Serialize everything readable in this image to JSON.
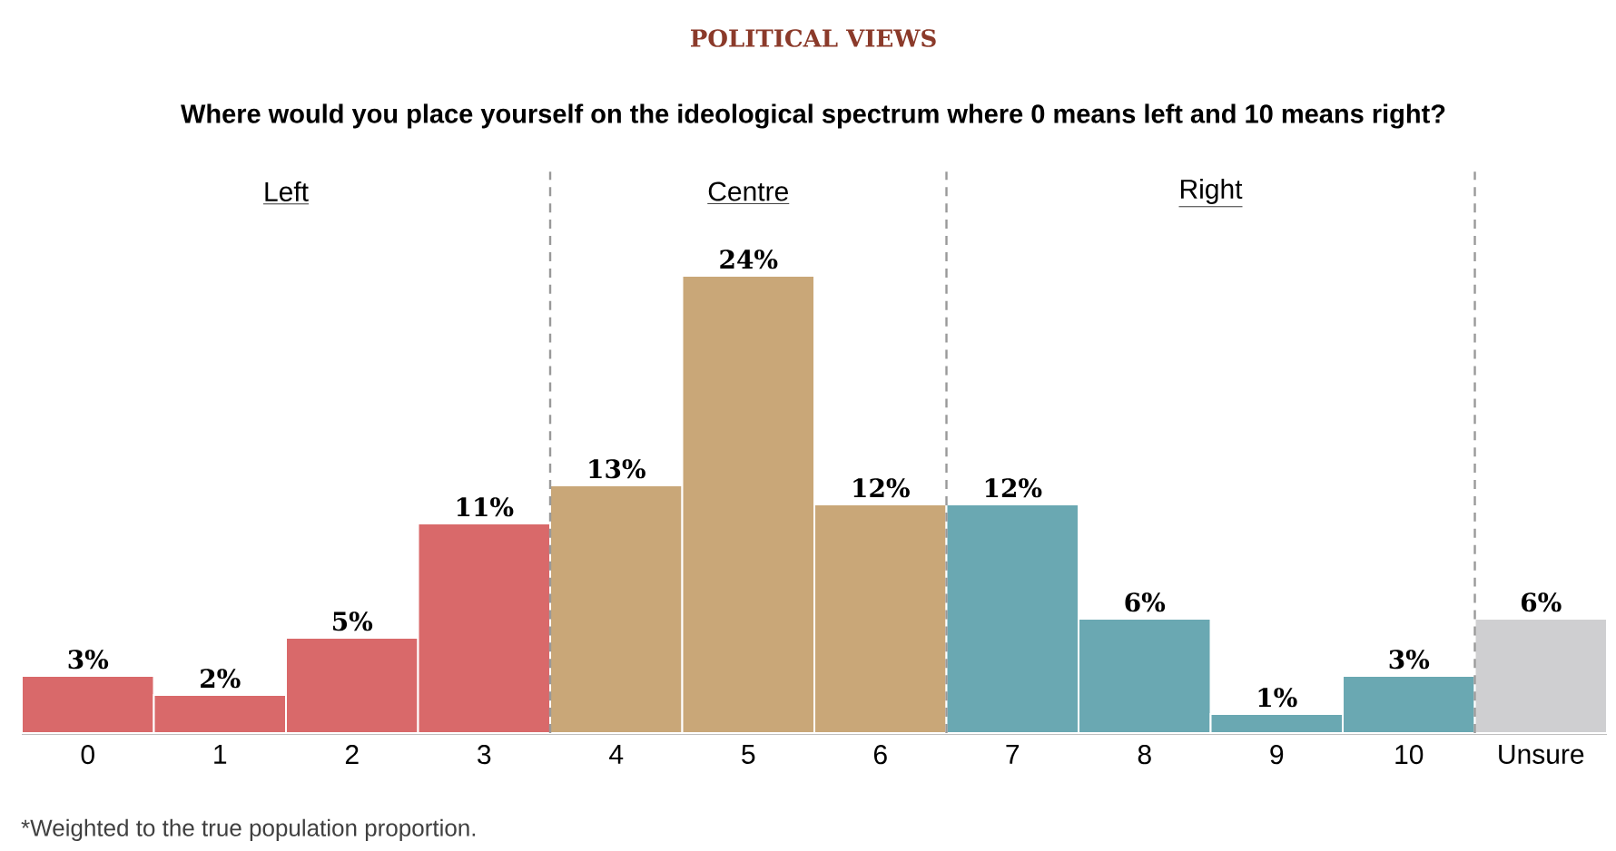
{
  "chart_data": {
    "type": "bar",
    "title": "POLITICAL VIEWS",
    "subtitle": "Where would you place yourself on the ideological spectrum where 0 means left and 10 means right?",
    "categories": [
      "0",
      "1",
      "2",
      "3",
      "4",
      "5",
      "6",
      "7",
      "8",
      "9",
      "10",
      "Unsure"
    ],
    "values": [
      3,
      2,
      5,
      11,
      13,
      24,
      12,
      12,
      6,
      1,
      3,
      6
    ],
    "value_labels": [
      "3%",
      "2%",
      "5%",
      "11%",
      "13%",
      "24%",
      "12%",
      "12%",
      "6%",
      "1%",
      "3%",
      "6%"
    ],
    "colors": [
      "#d9696a",
      "#d9696a",
      "#d9696a",
      "#d9696a",
      "#c9a778",
      "#c9a778",
      "#c9a778",
      "#6aa8b2",
      "#6aa8b2",
      "#6aa8b2",
      "#6aa8b2",
      "#cfcfd1"
    ],
    "annotations": [
      "Left",
      "Centre",
      "Right",
      "*Weighted to the true population proportion."
    ]
  }
}
